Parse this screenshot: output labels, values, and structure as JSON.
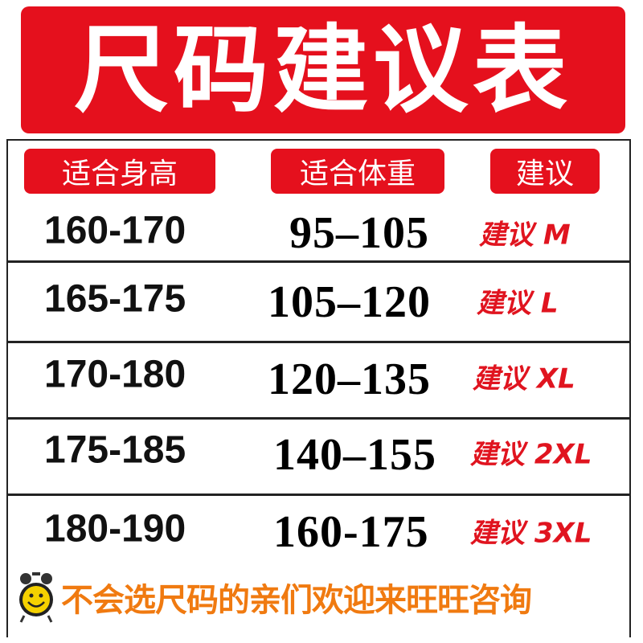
{
  "title": "尺码建议表",
  "headers": [
    "适合身高",
    "适合体重",
    "建议"
  ],
  "rows": [
    {
      "height": "160-170",
      "weight": "95–105",
      "size": "建议 M"
    },
    {
      "height": "165-175",
      "weight": "105–120",
      "size": "建议 L"
    },
    {
      "height": "170-180",
      "weight": "120–135",
      "size": "建议 XL"
    },
    {
      "height": "175-185",
      "weight": "140–155",
      "size": "建议 2XL"
    },
    {
      "height": "180-190",
      "weight": "160-175",
      "size": "建议 3XL"
    }
  ],
  "footer": {
    "icon": "alarm-clock-smiley-icon",
    "text": "不会选尺码的亲们欢迎来旺旺咨询"
  },
  "colors": {
    "red": "#e5101d",
    "orange": "#f07a10"
  }
}
